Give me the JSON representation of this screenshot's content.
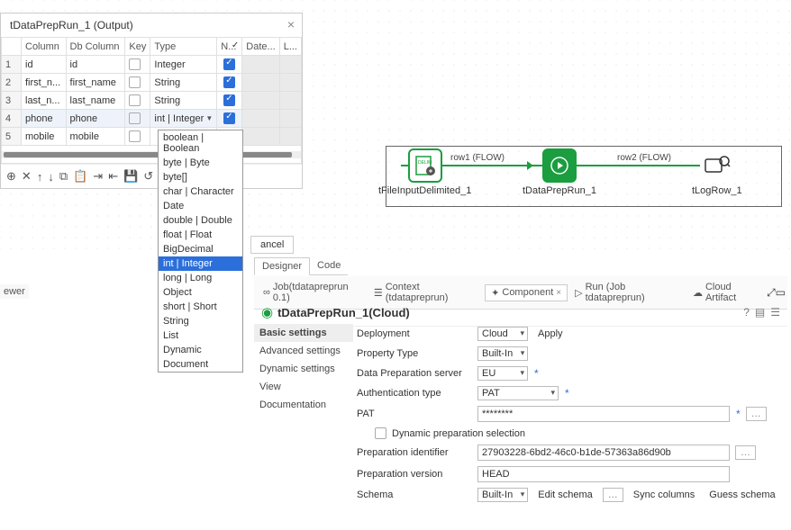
{
  "dialog": {
    "title": "tDataPrepRun_1 (Output)",
    "columns": [
      "Column",
      "Db Column",
      "Key",
      "Type",
      "N...",
      "Date...",
      "L..."
    ],
    "rows": [
      {
        "idx": "1",
        "col": "id",
        "db": "id",
        "type": "Integer",
        "nullable": true
      },
      {
        "idx": "2",
        "col": "first_n...",
        "db": "first_name",
        "type": "String",
        "nullable": true
      },
      {
        "idx": "3",
        "col": "last_n...",
        "db": "last_name",
        "type": "String",
        "nullable": true
      },
      {
        "idx": "4",
        "col": "phone",
        "db": "phone",
        "type": "int | Integer",
        "nullable": true
      },
      {
        "idx": "5",
        "col": "mobile",
        "db": "mobile",
        "type": "",
        "nullable": false
      }
    ],
    "cancel": "ancel"
  },
  "typeDropdown": {
    "options": [
      "boolean | Boolean",
      "byte | Byte",
      "byte[]",
      "char | Character",
      "Date",
      "double | Double",
      "float | Float",
      "BigDecimal",
      "int | Integer",
      "long | Long",
      "Object",
      "short | Short",
      "String",
      "List",
      "Dynamic",
      "Document"
    ],
    "selected": "int | Integer"
  },
  "flow": {
    "node1": "tFileInputDelimited_1",
    "node2": "tDataPrepRun_1",
    "node3": "tLogRow_1",
    "row1": "row1 (FLOW)",
    "row2": "row2 (FLOW)"
  },
  "tabs": {
    "designer": "Designer",
    "code": "Code"
  },
  "views": {
    "job": "Job(tdatapreprun 0.1)",
    "context": "Context (tdatapreprun)",
    "component": "Component",
    "run": "Run (Job tdatapreprun)",
    "cloud": "Cloud Artifact"
  },
  "component": {
    "title": "tDataPrepRun_1(Cloud)",
    "nav": {
      "basic": "Basic settings",
      "advanced": "Advanced settings",
      "dynamic": "Dynamic settings",
      "view": "View",
      "doc": "Documentation"
    },
    "fields": {
      "deployment_l": "Deployment",
      "deployment_v": "Cloud",
      "apply": "Apply",
      "proptype_l": "Property Type",
      "proptype_v": "Built-In",
      "dps_l": "Data Preparation server",
      "dps_v": "EU",
      "auth_l": "Authentication type",
      "auth_v": "PAT",
      "pat_l": "PAT",
      "pat_v": "********",
      "dyn_l": "Dynamic preparation selection",
      "prepid_l": "Preparation identifier",
      "prepid_v": "27903228-6bd2-46c0-b1de-57363a86d90b",
      "prepver_l": "Preparation version",
      "prepver_v": "HEAD",
      "schema_l": "Schema",
      "schema_v": "Built-In",
      "edit": "Edit schema",
      "sync": "Sync columns",
      "guess": "Guess schema"
    }
  },
  "misc": {
    "ewer": "ewer"
  }
}
